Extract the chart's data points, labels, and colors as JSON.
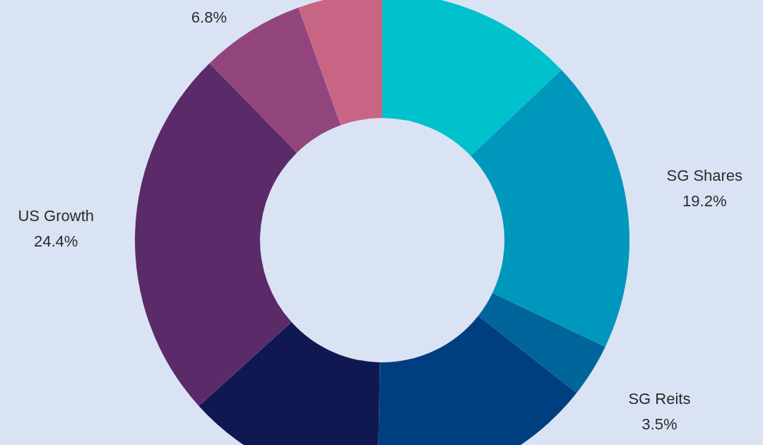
{
  "chart_data": {
    "type": "donut",
    "categories": [
      null,
      "SG Shares",
      "SG Reits",
      null,
      null,
      "US Growth",
      null,
      null
    ],
    "values": [
      12.9,
      19.2,
      3.5,
      14.7,
      13.0,
      24.4,
      6.8,
      5.5
    ],
    "value_labels": [
      null,
      "19.2%",
      "3.5%",
      null,
      null,
      "24.4%",
      "6.8%",
      null
    ],
    "colors": [
      "#00c2cc",
      "#0097bd",
      "#00659a",
      "#003f7f",
      "#101852",
      "#5a2a69",
      "#92457c",
      "#c86584"
    ]
  }
}
